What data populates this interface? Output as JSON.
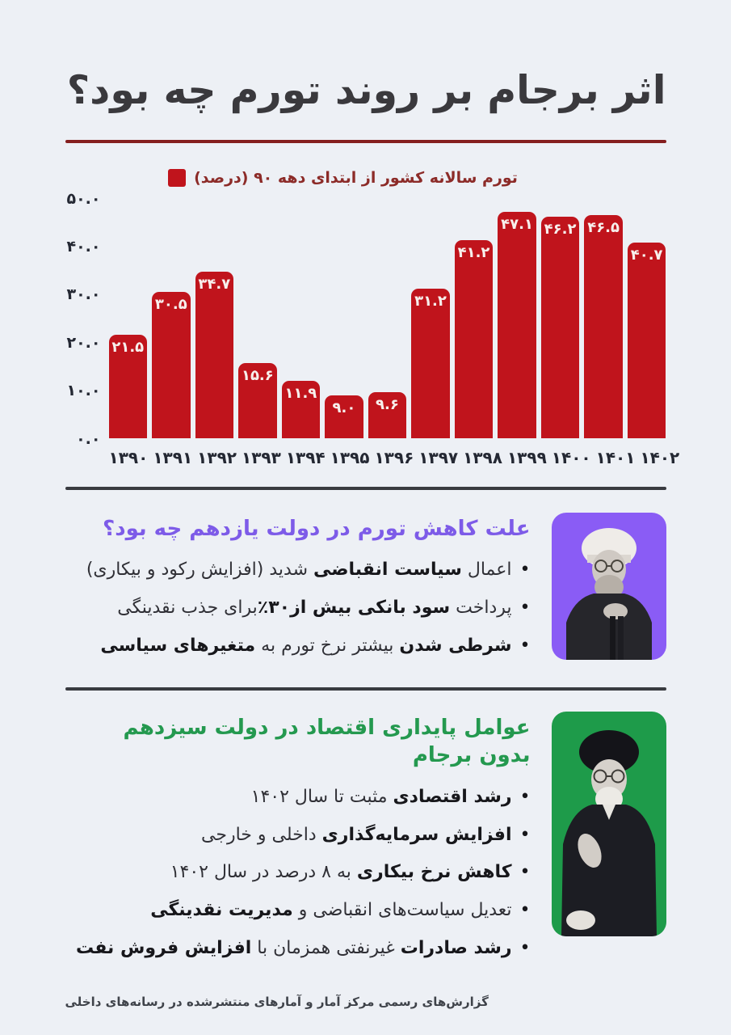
{
  "page": {
    "title": "اثر برجام بر روند تورم چه بود؟",
    "footer": "گزارش‌های رسمی مرکز آمار و آمارهای منتشرشده در رسانه‌های داخلی"
  },
  "chart_data": {
    "type": "bar",
    "title": "تورم سالانه کشور از ابتدای دهه ۹۰ (درصد)",
    "xlabel": "",
    "ylabel": "",
    "ylim": [
      0,
      50
    ],
    "grid": false,
    "legend_position": "top-center",
    "bar_color": "#c0141c",
    "categories": [
      "۱۳۹۰",
      "۱۳۹۱",
      "۱۳۹۲",
      "۱۳۹۳",
      "۱۳۹۴",
      "۱۳۹۵",
      "۱۳۹۶",
      "۱۳۹۷",
      "۱۳۹۸",
      "۱۳۹۹",
      "۱۴۰۰",
      "۱۴۰۱",
      "۱۴۰۲"
    ],
    "values": [
      21.5,
      30.5,
      34.7,
      15.6,
      11.9,
      9.0,
      9.6,
      31.2,
      41.2,
      47.1,
      46.2,
      46.5,
      40.7
    ],
    "value_labels": [
      "۲۱.۵",
      "۳۰.۵",
      "۳۴.۷",
      "۱۵.۶",
      "۱۱.۹",
      "۹.۰",
      "۹.۶",
      "۳۱.۲",
      "۴۱.۲",
      "۴۷.۱",
      "۴۶.۲",
      "۴۶.۵",
      "۴۰.۷"
    ],
    "y_ticks": [
      {
        "label": "۵۰.۰",
        "value": 50
      },
      {
        "label": "۴۰.۰",
        "value": 40
      },
      {
        "label": "۳۰.۰",
        "value": 30
      },
      {
        "label": "۲۰.۰",
        "value": 20
      },
      {
        "label": "۱۰.۰",
        "value": 10
      },
      {
        "label": "۰.۰",
        "value": 0
      }
    ]
  },
  "sections": [
    {
      "id": "eleventh-government",
      "heading": "علت کاهش تورم در دولت یازدهم چه بود؟",
      "heading_color": "#7d5be8",
      "photo_bg": "#8a5cf5",
      "photo_person": "حسن روحانی",
      "bullets": [
        {
          "parts": [
            {
              "t": "اعمال ",
              "b": false
            },
            {
              "t": "سیاست انقباضی",
              "b": true
            },
            {
              "t": " شدید (افزایش رکود و بیکاری)",
              "b": false
            }
          ]
        },
        {
          "parts": [
            {
              "t": "پرداخت ",
              "b": false
            },
            {
              "t": "سود بانکی بیش از۳۰٪",
              "b": true
            },
            {
              "t": "برای جذب نقدینگی",
              "b": false
            }
          ]
        },
        {
          "parts": [
            {
              "t": "شرطی شدن",
              "b": true
            },
            {
              "t": " بیشتر نرخ تورم به ",
              "b": false
            },
            {
              "t": "متغیرهای سیاسی",
              "b": true
            }
          ]
        }
      ]
    },
    {
      "id": "thirteenth-government",
      "heading": "عوامل پایداری اقتصاد در دولت سیزدهم بدون برجام",
      "heading_color": "#24994f",
      "photo_bg": "#1e9b4a",
      "photo_person": "ابراهیم رئیسی",
      "bullets": [
        {
          "parts": [
            {
              "t": "رشد اقتصادی",
              "b": true
            },
            {
              "t": " مثبت تا سال ۱۴۰۲",
              "b": false
            }
          ]
        },
        {
          "parts": [
            {
              "t": "افزایش سرمایه‌گذاری",
              "b": true
            },
            {
              "t": " داخلی و خارجی",
              "b": false
            }
          ]
        },
        {
          "parts": [
            {
              "t": "کاهش نرخ بیکاری",
              "b": true
            },
            {
              "t": " به ۸ درصد در سال ۱۴۰۲",
              "b": false
            }
          ]
        },
        {
          "parts": [
            {
              "t": "تعدیل سیاست‌های انقباضی و ",
              "b": false
            },
            {
              "t": "مدیریت نقدینگی",
              "b": true
            }
          ]
        },
        {
          "parts": [
            {
              "t": "رشد صادرات",
              "b": true
            },
            {
              "t": " غیرنفتی همزمان با ",
              "b": false
            },
            {
              "t": "افزایش فروش نفت",
              "b": true
            }
          ]
        }
      ]
    }
  ]
}
